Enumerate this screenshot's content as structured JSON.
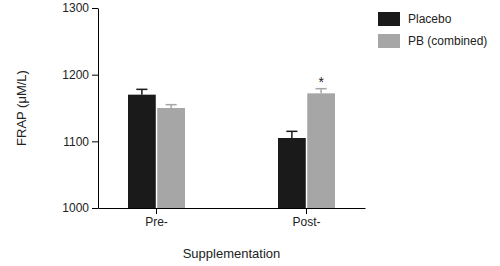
{
  "chart_data": {
    "type": "bar",
    "x_label": "Supplementation",
    "y_label": "FRAP (μM/L)",
    "categories": [
      "Pre-",
      "Post-"
    ],
    "series": [
      {
        "name": "Placebo",
        "color": "#1a1a1a",
        "values": [
          1170,
          1105
        ],
        "errors": [
          8,
          10
        ]
      },
      {
        "name": "PB (combined)",
        "color": "#a6a6a6",
        "values": [
          1150,
          1172
        ],
        "errors": [
          5,
          7
        ]
      }
    ],
    "ylim": [
      1000,
      1300
    ],
    "yticks": [
      1000,
      1100,
      1200,
      1300
    ],
    "legend": "top-right",
    "annotations": [
      {
        "text": "*",
        "category": "Post-",
        "series": "PB (combined)"
      }
    ]
  }
}
